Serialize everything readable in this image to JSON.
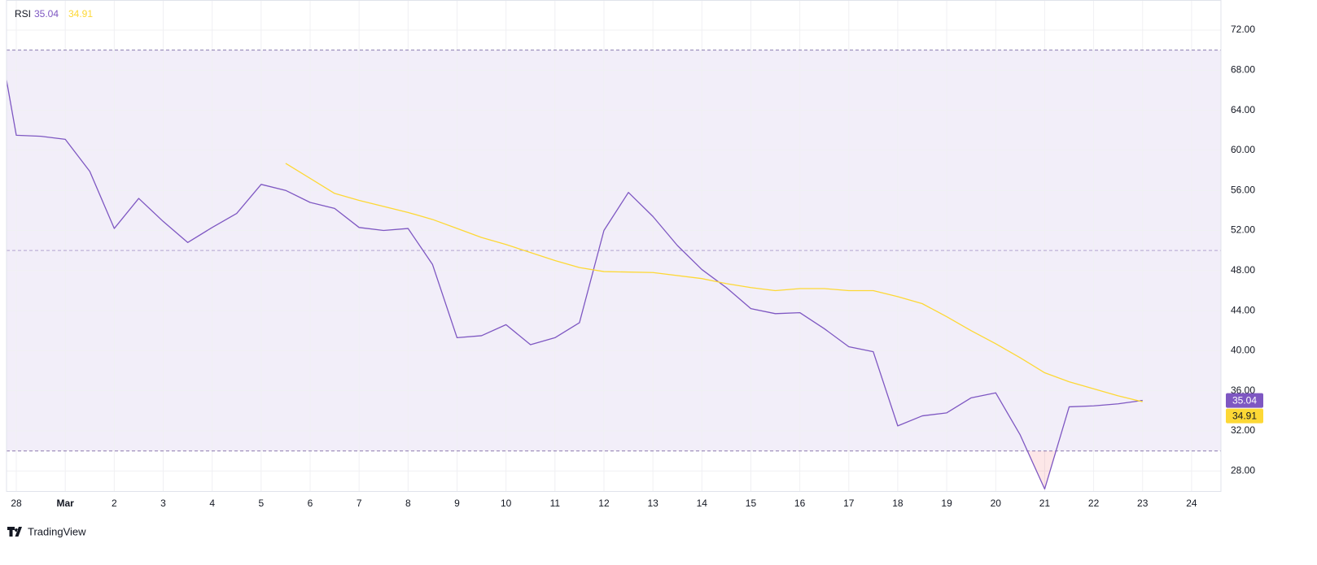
{
  "chart_data": {
    "type": "line",
    "title": "RSI",
    "xlim": [
      -0.2,
      24.6
    ],
    "xticks": [
      {
        "value": 0,
        "label": "28"
      },
      {
        "value": 1,
        "label": "Mar"
      },
      2,
      3,
      4,
      5,
      6,
      7,
      8,
      9,
      10,
      11,
      12,
      13,
      14,
      15,
      16,
      17,
      18,
      19,
      20,
      21,
      22,
      23,
      24
    ],
    "ylim": [
      26,
      75
    ],
    "yticks": [
      {
        "value": 28,
        "label": "28.00"
      },
      {
        "value": 32,
        "label": "32.00"
      },
      {
        "value": 36,
        "label": "36.00"
      },
      {
        "value": 40,
        "label": "40.00"
      },
      {
        "value": 44,
        "label": "44.00"
      },
      {
        "value": 48,
        "label": "48.00"
      },
      {
        "value": 52,
        "label": "52.00"
      },
      {
        "value": 56,
        "label": "56.00"
      },
      {
        "value": 60,
        "label": "60.00"
      },
      {
        "value": 64,
        "label": "64.00"
      },
      {
        "value": 68,
        "label": "68.00"
      },
      {
        "value": 72,
        "label": "72.00"
      }
    ],
    "levels": [
      70,
      50,
      30
    ],
    "band_color": "#7e57c2",
    "grid": true,
    "series": [
      {
        "color": "#7e57c2",
        "x": [
          -0.2,
          0,
          0.5,
          1,
          1.5,
          2,
          2.5,
          3,
          3.5,
          4,
          4.5,
          5,
          5.5,
          6,
          6.5,
          7,
          7.5,
          8,
          8.5,
          9,
          9.5,
          10,
          10.5,
          11,
          11.5,
          12,
          12.5,
          13,
          13.5,
          14,
          14.5,
          15,
          15.5,
          16,
          16.5,
          17,
          17.5,
          18,
          18.5,
          19,
          19.5,
          20,
          20.5,
          21,
          21.5,
          22,
          22.5,
          23
        ],
        "values": [
          67,
          61.5,
          61.4,
          61.1,
          57.9,
          52.2,
          55.2,
          52.9,
          50.8,
          52.3,
          53.7,
          56.6,
          56.0,
          54.8,
          54.2,
          52.3,
          52.0,
          52.2,
          48.6,
          41.3,
          41.5,
          42.6,
          40.6,
          41.3,
          42.8,
          52.0,
          55.8,
          53.4,
          50.5,
          48.1,
          46.3,
          44.2,
          43.7,
          43.8,
          42.2,
          40.4,
          39.9,
          32.5,
          33.5,
          33.8,
          35.3,
          35.8,
          31.6,
          26.2,
          34.4,
          34.5,
          34.7,
          35.04
        ]
      },
      {
        "color": "#fdd835",
        "x": [
          5.5,
          6.5,
          7,
          8,
          8.5,
          9,
          9.5,
          10,
          10.5,
          11,
          11.5,
          12,
          13,
          14,
          14.5,
          15,
          15.5,
          16,
          16.5,
          17,
          17.5,
          18,
          18.5,
          19,
          19.5,
          20,
          20.5,
          21,
          21.5,
          22,
          22.5,
          23
        ],
        "values": [
          58.7,
          55.7,
          55.0,
          53.8,
          53.1,
          52.2,
          51.3,
          50.6,
          49.8,
          49.0,
          48.3,
          47.9,
          47.8,
          47.2,
          46.7,
          46.3,
          46.0,
          46.2,
          46.2,
          46.0,
          46.0,
          45.4,
          44.7,
          43.4,
          42.0,
          40.7,
          39.3,
          37.8,
          36.9,
          36.2,
          35.5,
          34.91
        ]
      }
    ]
  },
  "brand": "TradingView"
}
